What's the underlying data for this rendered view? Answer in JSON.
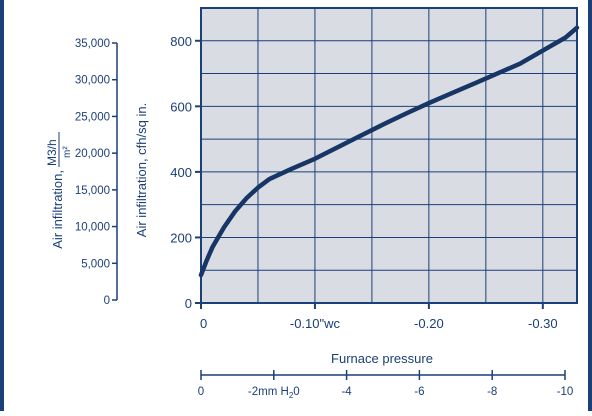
{
  "chart_data": {
    "type": "line",
    "title": "",
    "xlabel": "Furnace pressure",
    "ylabel": "Air infiltration, cfh/sq in.",
    "ylabel_secondary": {
      "main": "Air infiltration,",
      "numerator": "M3/h",
      "denominator": "m²"
    },
    "xlim": [
      0,
      -0.33
    ],
    "ylim": [
      0,
      900
    ],
    "grid": true,
    "x_ticks": [
      {
        "value": 0,
        "label": "0"
      },
      {
        "value": -0.1,
        "label": "-0.10\"wc"
      },
      {
        "value": -0.2,
        "label": "-0.20"
      },
      {
        "value": -0.3,
        "label": "-0.30"
      }
    ],
    "y_ticks": [
      {
        "value": 0,
        "label": "0"
      },
      {
        "value": 200,
        "label": "200"
      },
      {
        "value": 400,
        "label": "400"
      },
      {
        "value": 600,
        "label": "600"
      },
      {
        "value": 800,
        "label": "800"
      }
    ],
    "y_ticks_secondary": [
      {
        "value": 0,
        "label": "0"
      },
      {
        "value": 5000,
        "label": "5,000"
      },
      {
        "value": 10000,
        "label": "10,000"
      },
      {
        "value": 15000,
        "label": "15,000"
      },
      {
        "value": 20000,
        "label": "20,000"
      },
      {
        "value": 25000,
        "label": "25,000"
      },
      {
        "value": 30000,
        "label": "30,000"
      },
      {
        "value": 35000,
        "label": "35,000"
      }
    ],
    "x_ticks_secondary": [
      {
        "value": 0,
        "label": "0"
      },
      {
        "value": -2,
        "label": "-2mm H",
        "sub": "2",
        "suffix": "0"
      },
      {
        "value": -4,
        "label": "-4"
      },
      {
        "value": -6,
        "label": "-6"
      },
      {
        "value": -8,
        "label": "-8"
      },
      {
        "value": -10,
        "label": "-10"
      }
    ],
    "series": [
      {
        "x": [
          0,
          -0.005,
          -0.01,
          -0.02,
          -0.03,
          -0.04,
          -0.05,
          -0.06,
          -0.08,
          -0.1,
          -0.12,
          -0.14,
          -0.16,
          -0.18,
          -0.2,
          -0.22,
          -0.24,
          -0.26,
          -0.28,
          -0.3,
          -0.32,
          -0.33
        ],
        "y": [
          85,
          130,
          170,
          230,
          280,
          320,
          352,
          378,
          410,
          440,
          475,
          510,
          545,
          578,
          610,
          640,
          670,
          700,
          730,
          770,
          810,
          840
        ]
      }
    ]
  },
  "colors": {
    "plot_background": "#d9dde3",
    "grid_line": "#1b3f78",
    "curve": "#173565",
    "text": "#1b3f78",
    "frame": "#1b3f78"
  }
}
